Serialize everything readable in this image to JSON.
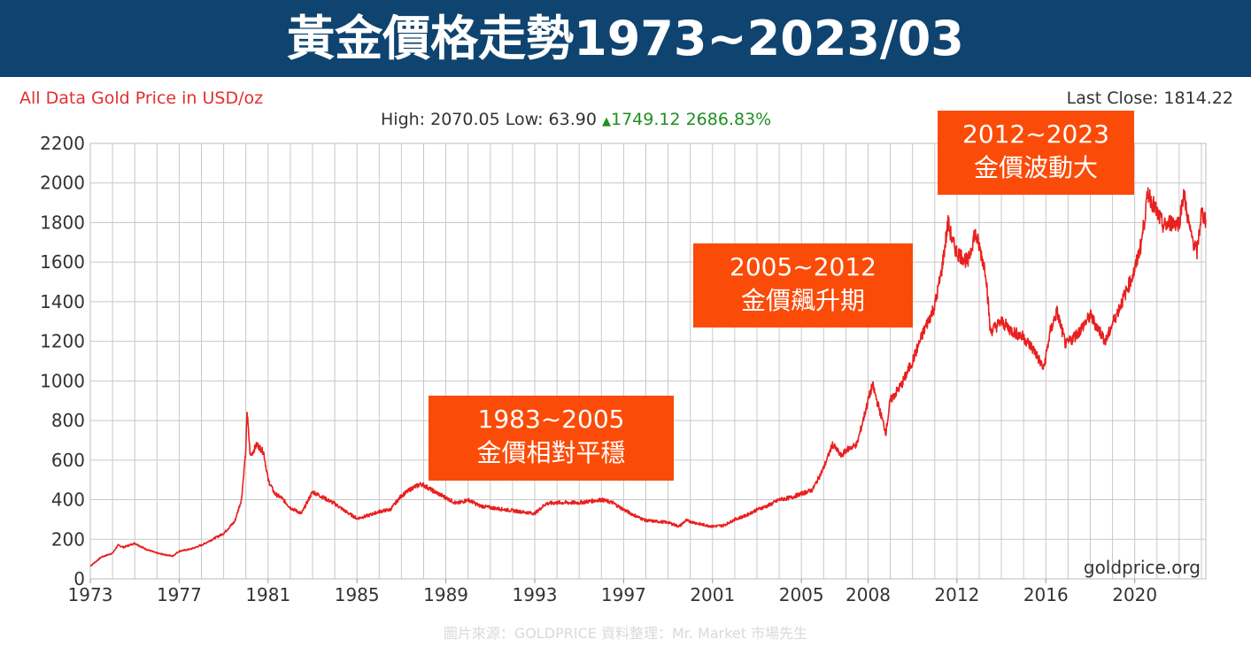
{
  "banner": {
    "title": "黃金價格走勢1973~2023/03"
  },
  "header": {
    "subtitle": "All Data Gold Price in USD/oz",
    "last_close": "Last Close: 1814.22",
    "high_low": "High: 2070.05 Low: 63.90",
    "change": "1749.12 2686.83%"
  },
  "watermark": "goldprice.org",
  "footer": "圖片來源：GOLDPRICE  資料整理：Mr. Market 市場先生",
  "callouts": [
    {
      "line1": "1983~2005",
      "line2": "金價相對平穩"
    },
    {
      "line1": "2005~2012",
      "line2": "金價飆升期"
    },
    {
      "line1": "2012~2023",
      "line2": "金價波動大"
    }
  ],
  "colors": {
    "banner": "#0f4470",
    "line": "#e8201f",
    "callout": "#fb4b08",
    "grid": "#c8c8c8"
  },
  "chart_data": {
    "type": "line",
    "title": "All Data Gold Price in USD/oz",
    "xlabel": "",
    "ylabel": "",
    "xlim": [
      1973,
      2023.2
    ],
    "ylim": [
      0,
      2200
    ],
    "yticks": [
      0,
      200,
      400,
      600,
      800,
      1000,
      1200,
      1400,
      1600,
      1800,
      2000,
      2200
    ],
    "xticks": [
      "1973",
      "1977",
      "1981",
      "1985",
      "1989",
      "1993",
      "1997",
      "2001",
      "2005",
      "2008",
      "2012",
      "2016",
      "2020"
    ],
    "grid": true,
    "series": [
      {
        "x": [
          1973.0,
          1973.5,
          1974.0,
          1974.25,
          1974.5,
          1975.0,
          1975.5,
          1976.0,
          1976.7,
          1977.0,
          1977.5,
          1978.0,
          1978.5,
          1979.0,
          1979.5,
          1979.8,
          1980.0,
          1980.05,
          1980.2,
          1980.5,
          1980.8,
          1981.0,
          1981.3,
          1981.6,
          1982.0,
          1982.5,
          1983.0,
          1983.5,
          1984.0,
          1984.5,
          1985.0,
          1985.5,
          1986.0,
          1986.5,
          1987.0,
          1987.5,
          1987.9,
          1988.5,
          1989.0,
          1989.5,
          1990.0,
          1990.5,
          1991.0,
          1992.0,
          1993.0,
          1993.5,
          1994.0,
          1995.0,
          1996.0,
          1996.5,
          1997.0,
          1997.5,
          1998.0,
          1998.5,
          1999.0,
          1999.5,
          1999.8,
          2000.0,
          2000.5,
          2001.0,
          2001.5,
          2002.0,
          2002.5,
          2003.0,
          2003.5,
          2004.0,
          2004.5,
          2005.0,
          2005.5,
          2006.0,
          2006.4,
          2006.8,
          2007.0,
          2007.5,
          2008.0,
          2008.2,
          2008.8,
          2009.0,
          2009.5,
          2010.0,
          2010.5,
          2011.0,
          2011.3,
          2011.6,
          2011.8,
          2012.0,
          2012.5,
          2012.8,
          2013.0,
          2013.3,
          2013.5,
          2014.0,
          2014.5,
          2015.0,
          2015.5,
          2015.9,
          2016.2,
          2016.5,
          2016.9,
          2017.5,
          2018.0,
          2018.7,
          2019.0,
          2019.5,
          2020.0,
          2020.3,
          2020.6,
          2020.8,
          2021.0,
          2021.3,
          2021.6,
          2022.0,
          2022.2,
          2022.5,
          2022.8,
          2023.0,
          2023.2
        ],
        "values": [
          65,
          110,
          130,
          170,
          160,
          180,
          150,
          130,
          115,
          140,
          150,
          170,
          200,
          230,
          290,
          400,
          650,
          850,
          620,
          680,
          640,
          500,
          430,
          410,
          360,
          330,
          440,
          410,
          380,
          340,
          305,
          320,
          340,
          350,
          420,
          460,
          480,
          440,
          410,
          380,
          400,
          370,
          360,
          345,
          330,
          380,
          385,
          385,
          400,
          385,
          350,
          320,
          295,
          290,
          285,
          265,
          295,
          290,
          275,
          265,
          270,
          300,
          320,
          350,
          370,
          400,
          410,
          430,
          450,
          560,
          680,
          620,
          650,
          680,
          900,
          980,
          740,
          900,
          980,
          1100,
          1250,
          1380,
          1550,
          1800,
          1700,
          1650,
          1600,
          1750,
          1680,
          1550,
          1250,
          1300,
          1250,
          1220,
          1150,
          1060,
          1250,
          1350,
          1180,
          1250,
          1330,
          1200,
          1290,
          1420,
          1560,
          1700,
          1950,
          1900,
          1850,
          1780,
          1800,
          1800,
          1950,
          1750,
          1650,
          1850,
          1814
        ]
      }
    ]
  }
}
